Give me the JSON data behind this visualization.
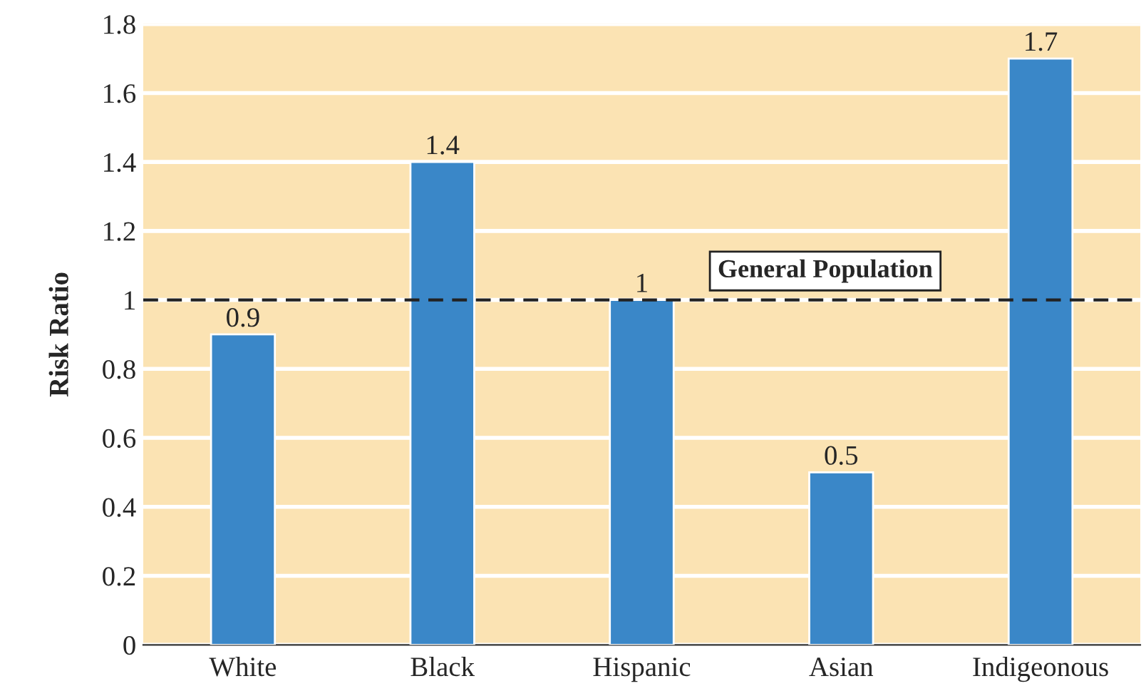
{
  "chart_data": {
    "type": "bar",
    "ylabel": "Risk Ratio",
    "categories": [
      "White",
      "Black",
      "Hispanic",
      "Asian",
      "Indigeonous"
    ],
    "values": [
      0.9,
      1.4,
      1,
      0.5,
      1.7
    ],
    "color": "#3a87c8",
    "ylim": [
      0,
      1.8
    ],
    "yticks": [
      0,
      0.2,
      0.4,
      0.6,
      0.8,
      1,
      1.2,
      1.4,
      1.6,
      1.8
    ],
    "grid": "y",
    "data_labels": true,
    "ref_lines": [
      {
        "axis": "y",
        "value": 1,
        "label": "General Population",
        "color": "#222222",
        "line_style": "dashed"
      }
    ]
  }
}
